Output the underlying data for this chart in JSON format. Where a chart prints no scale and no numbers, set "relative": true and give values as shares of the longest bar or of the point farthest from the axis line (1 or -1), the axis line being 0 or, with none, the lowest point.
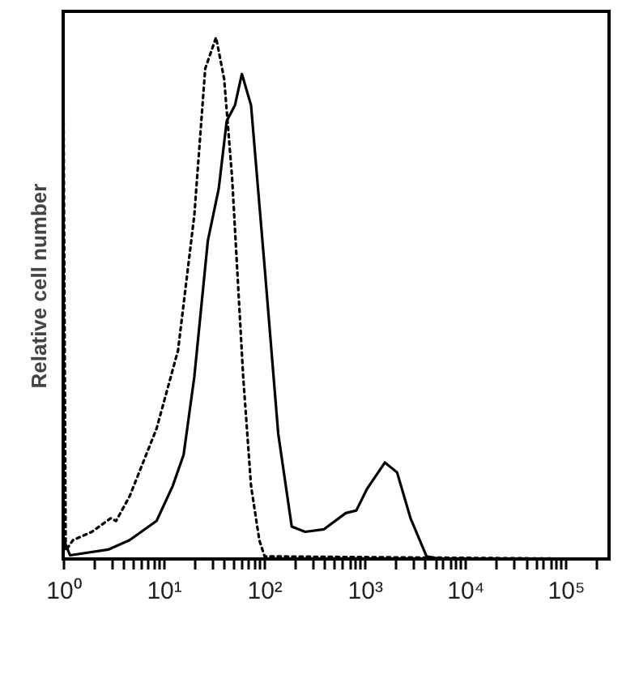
{
  "chart_data": {
    "type": "line",
    "ylabel": "Relative cell number",
    "relative": true,
    "log": "x",
    "grid": false,
    "marker": "none",
    "xlim": [
      1,
      270000
    ],
    "xticks": [
      {
        "value": 1,
        "label": "10⁰"
      },
      {
        "value": 2,
        "label": null
      },
      {
        "value": 3,
        "label": null
      },
      {
        "value": 4,
        "label": null
      },
      {
        "value": 5,
        "label": null
      },
      {
        "value": 6,
        "label": null
      },
      {
        "value": 7,
        "label": null
      },
      {
        "value": 8,
        "label": null
      },
      {
        "value": 9,
        "label": null
      },
      {
        "value": 10,
        "label": "10¹"
      },
      {
        "value": 20,
        "label": null
      },
      {
        "value": 30,
        "label": null
      },
      {
        "value": 40,
        "label": null
      },
      {
        "value": 50,
        "label": null
      },
      {
        "value": 60,
        "label": null
      },
      {
        "value": 70,
        "label": null
      },
      {
        "value": 80,
        "label": null
      },
      {
        "value": 90,
        "label": null
      },
      {
        "value": 100,
        "label": "10²"
      },
      {
        "value": 200,
        "label": null
      },
      {
        "value": 300,
        "label": null
      },
      {
        "value": 400,
        "label": null
      },
      {
        "value": 500,
        "label": null
      },
      {
        "value": 600,
        "label": null
      },
      {
        "value": 700,
        "label": null
      },
      {
        "value": 800,
        "label": null
      },
      {
        "value": 900,
        "label": null
      },
      {
        "value": 1000,
        "label": "10³"
      },
      {
        "value": 2000,
        "label": null
      },
      {
        "value": 3000,
        "label": null
      },
      {
        "value": 4000,
        "label": null
      },
      {
        "value": 5000,
        "label": null
      },
      {
        "value": 6000,
        "label": null
      },
      {
        "value": 7000,
        "label": null
      },
      {
        "value": 8000,
        "label": null
      },
      {
        "value": 9000,
        "label": null
      },
      {
        "value": 10000,
        "label": "10⁴"
      },
      {
        "value": 20000,
        "label": null
      },
      {
        "value": 30000,
        "label": null
      },
      {
        "value": 40000,
        "label": null
      },
      {
        "value": 50000,
        "label": null
      },
      {
        "value": 60000,
        "label": null
      },
      {
        "value": 70000,
        "label": null
      },
      {
        "value": 80000,
        "label": null
      },
      {
        "value": 90000,
        "label": null
      },
      {
        "value": 100000,
        "label": "10⁵"
      },
      {
        "value": 200000,
        "label": null
      }
    ],
    "series": [
      {
        "color": "#000000",
        "line_style": "solid",
        "x": [
          1,
          1.17,
          2.8,
          4.58,
          8.5,
          12.3,
          15.8,
          20.2,
          27.5,
          35.3,
          42.4,
          51.2,
          60,
          74,
          101,
          138,
          188,
          256,
          394,
          648,
          826,
          1060,
          1590,
          2100,
          2860,
          4130,
          5690,
          270000
        ],
        "values": [
          0.04,
          0.007,
          0.018,
          0.036,
          0.073,
          0.14,
          0.2,
          0.35,
          0.61,
          0.71,
          0.84,
          0.87,
          0.93,
          0.87,
          0.56,
          0.24,
          0.062,
          0.052,
          0.057,
          0.088,
          0.093,
          0.135,
          0.185,
          0.166,
          0.078,
          0.005,
          0,
          0
        ]
      },
      {
        "color": "#000000",
        "line_style": "dotted",
        "x": [
          1,
          1.06,
          1.25,
          1.93,
          2.97,
          3.36,
          4.58,
          8.5,
          13.9,
          20.2,
          25.9,
          33.2,
          40,
          48,
          61.8,
          74,
          89.5,
          101,
          270000
        ],
        "values": [
          0.99,
          0.016,
          0.036,
          0.052,
          0.078,
          0.073,
          0.12,
          0.25,
          0.4,
          0.66,
          0.94,
          1,
          0.92,
          0.73,
          0.35,
          0.14,
          0.036,
          0.005,
          0
        ]
      }
    ]
  }
}
